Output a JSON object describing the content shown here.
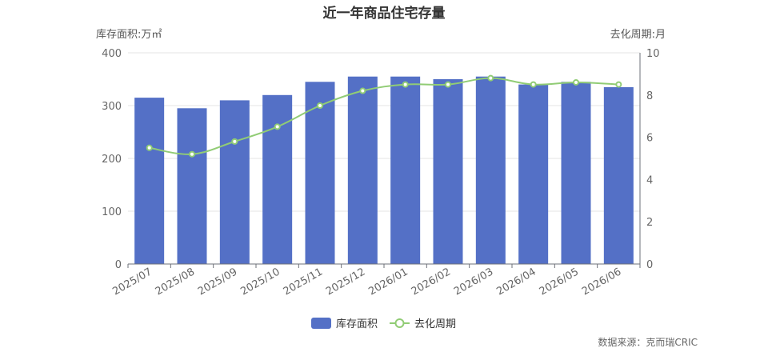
{
  "chart_data": {
    "type": "bar",
    "title": "近一年商品住宅存量",
    "left_axis_label": "库存面积:万㎡",
    "right_axis_label": "去化周期:月",
    "categories": [
      "2025/07",
      "2025/08",
      "2025/09",
      "2025/10",
      "2025/11",
      "2025/12",
      "2026/01",
      "2026/02",
      "2026/03",
      "2026/04",
      "2026/05",
      "2026/06"
    ],
    "series": [
      {
        "name": "库存面积",
        "type": "bar",
        "axis": "left",
        "color": "#5470c6",
        "values": [
          315,
          295,
          310,
          320,
          345,
          355,
          355,
          350,
          355,
          340,
          345,
          335
        ]
      },
      {
        "name": "去化周期",
        "type": "line",
        "axis": "right",
        "color": "#91cc75",
        "values": [
          5.5,
          5.2,
          5.8,
          6.5,
          7.5,
          8.2,
          8.5,
          8.5,
          8.8,
          8.5,
          8.6,
          8.5
        ]
      }
    ],
    "left_axis": {
      "min": 0,
      "max": 400,
      "ticks": [
        "0",
        "100",
        "200",
        "300",
        "400"
      ]
    },
    "right_axis": {
      "min": 0,
      "max": 10,
      "ticks": [
        "0",
        "2",
        "4",
        "6",
        "8",
        "10"
      ]
    },
    "grid": true,
    "legend_position": "bottom-center",
    "source": "数据来源：克而瑞CRIC"
  }
}
